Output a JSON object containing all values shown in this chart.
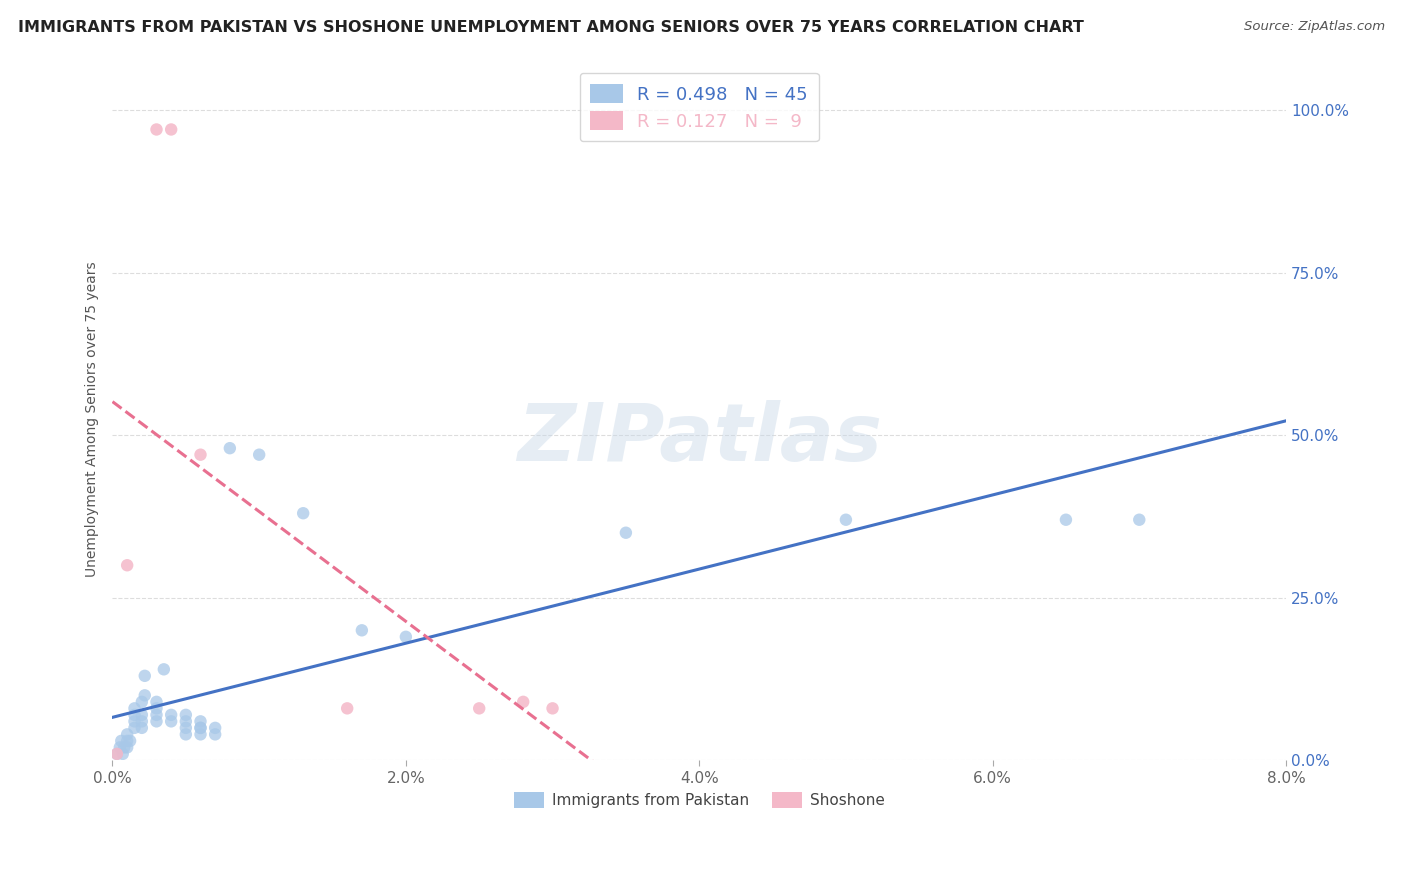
{
  "title": "IMMIGRANTS FROM PAKISTAN VS SHOSHONE UNEMPLOYMENT AMONG SENIORS OVER 75 YEARS CORRELATION CHART",
  "source": "Source: ZipAtlas.com",
  "ylabel": "Unemployment Among Seniors over 75 years",
  "xlim": [
    0.0,
    0.08
  ],
  "ylim": [
    0.0,
    1.05
  ],
  "xticks": [
    0.0,
    0.02,
    0.04,
    0.06,
    0.08
  ],
  "xticklabels": [
    "0.0%",
    "2.0%",
    "4.0%",
    "6.0%",
    "8.0%"
  ],
  "yticks_right": [
    0.0,
    0.25,
    0.5,
    0.75,
    1.0
  ],
  "yticklabels_right": [
    "0.0%",
    "25.0%",
    "50.0%",
    "75.0%",
    "100.0%"
  ],
  "pakistan_color": "#a8c8e8",
  "shoshone_color": "#f4b8c8",
  "pakistan_R": 0.498,
  "pakistan_N": 45,
  "shoshone_R": 0.127,
  "shoshone_N": 9,
  "pakistan_line_color": "#4472c4",
  "shoshone_line_color": "#e87090",
  "background_color": "#ffffff",
  "watermark": "ZIPatlas",
  "pakistan_points": [
    [
      0.0003,
      0.01
    ],
    [
      0.0005,
      0.02
    ],
    [
      0.0006,
      0.03
    ],
    [
      0.0007,
      0.01
    ],
    [
      0.0008,
      0.02
    ],
    [
      0.001,
      0.03
    ],
    [
      0.001,
      0.04
    ],
    [
      0.001,
      0.02
    ],
    [
      0.0012,
      0.03
    ],
    [
      0.0015,
      0.05
    ],
    [
      0.0015,
      0.06
    ],
    [
      0.0015,
      0.07
    ],
    [
      0.0015,
      0.08
    ],
    [
      0.002,
      0.05
    ],
    [
      0.002,
      0.06
    ],
    [
      0.002,
      0.07
    ],
    [
      0.002,
      0.09
    ],
    [
      0.0022,
      0.1
    ],
    [
      0.0022,
      0.13
    ],
    [
      0.003,
      0.06
    ],
    [
      0.003,
      0.07
    ],
    [
      0.003,
      0.08
    ],
    [
      0.003,
      0.09
    ],
    [
      0.0035,
      0.14
    ],
    [
      0.004,
      0.07
    ],
    [
      0.004,
      0.06
    ],
    [
      0.005,
      0.05
    ],
    [
      0.005,
      0.06
    ],
    [
      0.005,
      0.07
    ],
    [
      0.005,
      0.04
    ],
    [
      0.006,
      0.04
    ],
    [
      0.006,
      0.05
    ],
    [
      0.006,
      0.06
    ],
    [
      0.006,
      0.05
    ],
    [
      0.007,
      0.04
    ],
    [
      0.007,
      0.05
    ],
    [
      0.008,
      0.48
    ],
    [
      0.01,
      0.47
    ],
    [
      0.013,
      0.38
    ],
    [
      0.017,
      0.2
    ],
    [
      0.02,
      0.19
    ],
    [
      0.035,
      0.35
    ],
    [
      0.05,
      0.37
    ],
    [
      0.065,
      0.37
    ],
    [
      0.07,
      0.37
    ]
  ],
  "shoshone_points": [
    [
      0.0003,
      0.01
    ],
    [
      0.001,
      0.3
    ],
    [
      0.003,
      0.97
    ],
    [
      0.004,
      0.97
    ],
    [
      0.006,
      0.47
    ],
    [
      0.016,
      0.08
    ],
    [
      0.025,
      0.08
    ],
    [
      0.028,
      0.09
    ],
    [
      0.03,
      0.08
    ]
  ],
  "bottom_legend_labels": [
    "Immigrants from Pakistan",
    "Shoshone"
  ]
}
